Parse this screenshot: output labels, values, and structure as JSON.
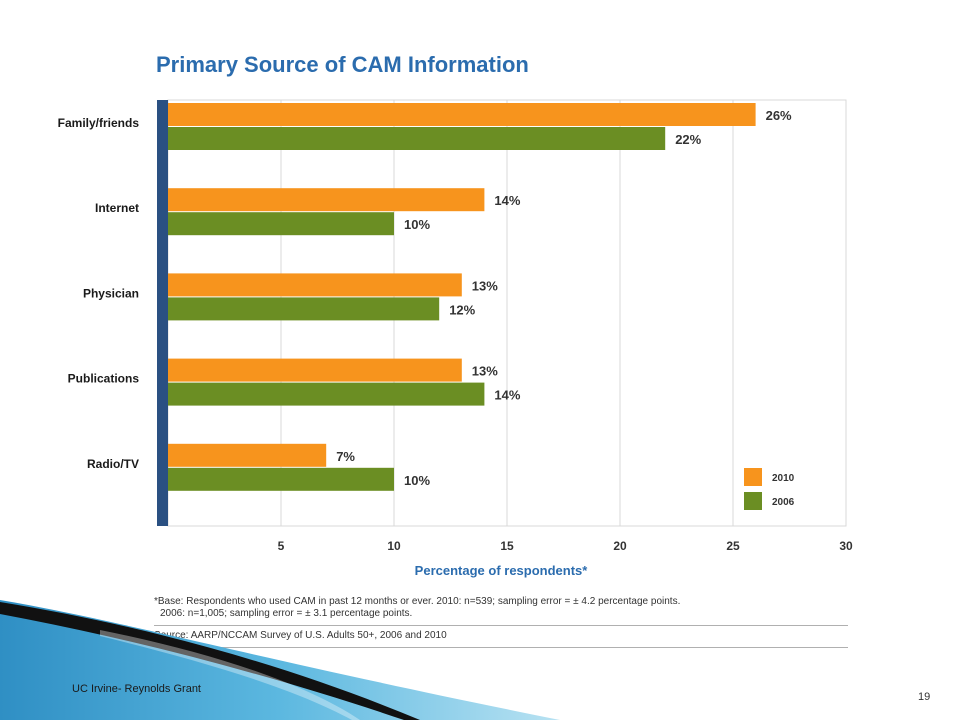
{
  "chart_data": {
    "type": "bar",
    "orientation": "horizontal",
    "title": "Primary Source of CAM Information",
    "xlabel": "Percentage of respondents*",
    "ylabel": "",
    "categories": [
      "Family/friends",
      "Internet",
      "Physician",
      "Publications",
      "Radio/TV"
    ],
    "series": [
      {
        "name": "2010",
        "values": [
          26,
          14,
          13,
          13,
          7
        ],
        "labels": [
          "26%",
          "14%",
          "13%",
          "13%",
          "7%"
        ],
        "color": "#f7941d"
      },
      {
        "name": "2006",
        "values": [
          22,
          10,
          12,
          14,
          10
        ],
        "labels": [
          "22%",
          "10%",
          "12%",
          "14%",
          "10%"
        ],
        "color": "#6b8e23"
      }
    ],
    "xlim": [
      0,
      30
    ],
    "x_ticks": [
      5,
      10,
      15,
      20,
      25,
      30
    ],
    "grid": true,
    "legend_position": "bottom-right",
    "colors": {
      "axis": "#2a5082",
      "grid": "#d9d9d9",
      "title": "#2b6cae"
    }
  },
  "notes": {
    "base_line1": "*Base: Respondents who used CAM in past 12 months or ever. 2010: n=539; sampling error = ± 4.2 percentage points.",
    "base_line2": "2006: n=1,005; sampling error = ± 3.1 percentage points.",
    "source": "Source: AARP/NCCAM Survey of U.S. Adults 50+, 2006 and 2010"
  },
  "footer": {
    "org": "UC Irvine- Reynolds Grant",
    "slide_number": "19"
  }
}
